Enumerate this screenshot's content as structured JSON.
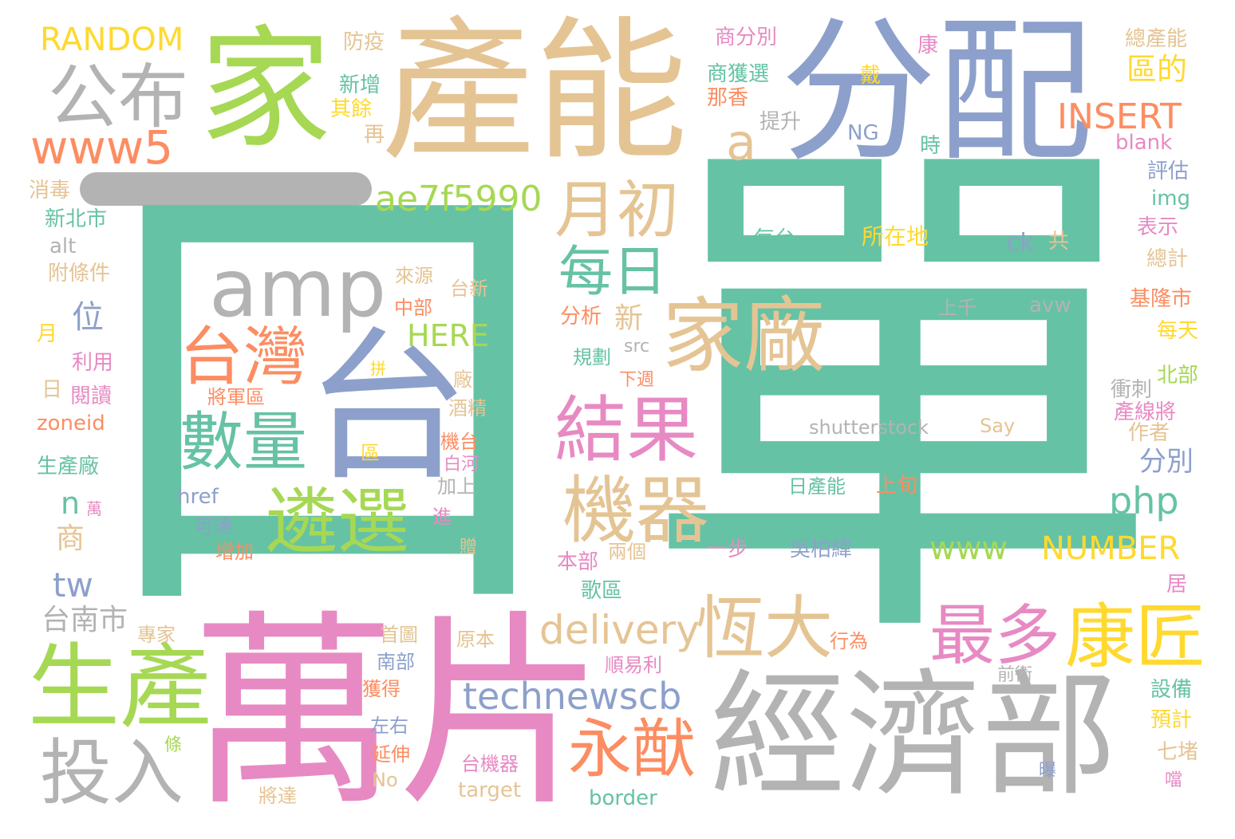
{
  "colors": {
    "teal": "#66c2a5",
    "orange": "#fc8d62",
    "blue": "#8da0cb",
    "pink": "#e78ac3",
    "green": "#a6d854",
    "yellow": "#ffd92f",
    "tan": "#e5c494",
    "gray": "#b3b3b3"
  },
  "words": [
    {
      "text": "單",
      "color": "teal"
    },
    {
      "text": "口",
      "color": "teal"
    },
    {
      "text": "萬片",
      "color": "pink"
    },
    {
      "text": "產能",
      "color": "tan"
    },
    {
      "text": "分配",
      "color": "blue"
    },
    {
      "text": "家",
      "color": "green"
    },
    {
      "text": "經濟部",
      "color": "gray"
    },
    {
      "text": "台",
      "color": "blue"
    },
    {
      "text": "公布",
      "color": "gray"
    },
    {
      "text": "www5",
      "color": "orange"
    },
    {
      "text": "RANDOM",
      "color": "yellow"
    },
    {
      "text": "amp",
      "color": "gray"
    },
    {
      "text": "台灣",
      "color": "orange"
    },
    {
      "text": "數量",
      "color": "teal"
    },
    {
      "text": "遴選",
      "color": "green"
    },
    {
      "text": "生產",
      "color": "green"
    },
    {
      "text": "投入",
      "color": "gray"
    },
    {
      "text": "月初",
      "color": "tan"
    },
    {
      "text": "每日",
      "color": "teal"
    },
    {
      "text": "家廠",
      "color": "tan"
    },
    {
      "text": "結果",
      "color": "pink"
    },
    {
      "text": "機器",
      "color": "tan"
    },
    {
      "text": "恆大",
      "color": "tan"
    },
    {
      "text": "永猷",
      "color": "orange"
    },
    {
      "text": "最多",
      "color": "pink"
    },
    {
      "text": "康匠",
      "color": "yellow"
    },
    {
      "text": "a",
      "color": "tan"
    },
    {
      "text": "ae7f5990",
      "color": "green"
    },
    {
      "text": "delivery",
      "color": "tan"
    },
    {
      "text": "technewscb",
      "color": "blue"
    },
    {
      "text": "INSERT",
      "color": "orange"
    },
    {
      "text": "區的",
      "color": "yellow"
    },
    {
      "text": "php",
      "color": "teal"
    },
    {
      "text": "www",
      "color": "green"
    },
    {
      "text": "NUMBER",
      "color": "yellow"
    },
    {
      "text": "分別",
      "color": "blue"
    },
    {
      "text": "HERE",
      "color": "green"
    },
    {
      "text": "位",
      "color": "blue"
    },
    {
      "text": "n",
      "color": "teal"
    },
    {
      "text": "tw",
      "color": "blue"
    },
    {
      "text": "台南市",
      "color": "gray"
    },
    {
      "text": "商",
      "color": "tan"
    },
    {
      "text": "新",
      "color": "tan"
    },
    {
      "text": "防疫",
      "color": "tan"
    },
    {
      "text": "新增",
      "color": "teal"
    },
    {
      "text": "其餘",
      "color": "yellow"
    },
    {
      "text": "再",
      "color": "tan"
    },
    {
      "text": "商分別",
      "color": "pink"
    },
    {
      "text": "商獲選",
      "color": "teal"
    },
    {
      "text": "那香",
      "color": "orange"
    },
    {
      "text": "提升",
      "color": "gray"
    },
    {
      "text": "康",
      "color": "pink"
    },
    {
      "text": "戴",
      "color": "yellow"
    },
    {
      "text": "NG",
      "color": "blue"
    },
    {
      "text": "時",
      "color": "teal"
    },
    {
      "text": "總產能",
      "color": "tan"
    },
    {
      "text": "blank",
      "color": "pink"
    },
    {
      "text": "評估",
      "color": "blue"
    },
    {
      "text": "img",
      "color": "teal"
    },
    {
      "text": "表示",
      "color": "pink"
    },
    {
      "text": "總計",
      "color": "tan"
    },
    {
      "text": "基隆市",
      "color": "orange"
    },
    {
      "text": "每天",
      "color": "yellow"
    },
    {
      "text": "北部",
      "color": "green"
    },
    {
      "text": "衝刺",
      "color": "gray"
    },
    {
      "text": "產線將",
      "color": "pink"
    },
    {
      "text": "作者",
      "color": "tan"
    },
    {
      "text": "居",
      "color": "pink"
    },
    {
      "text": "前衛",
      "color": "gray"
    },
    {
      "text": "設備",
      "color": "teal"
    },
    {
      "text": "預計",
      "color": "yellow"
    },
    {
      "text": "七堵",
      "color": "tan"
    },
    {
      "text": "曝",
      "color": "blue"
    },
    {
      "text": "噹",
      "color": "pink"
    },
    {
      "text": "每台",
      "color": "teal"
    },
    {
      "text": "所在地",
      "color": "yellow"
    },
    {
      "text": "ck",
      "color": "blue"
    },
    {
      "text": "共",
      "color": "tan"
    },
    {
      "text": "上千",
      "color": "gray"
    },
    {
      "text": "avw",
      "color": "gray"
    },
    {
      "text": "shutterstock",
      "color": "gray"
    },
    {
      "text": "Say",
      "color": "tan"
    },
    {
      "text": "日產能",
      "color": "teal"
    },
    {
      "text": "上旬",
      "color": "orange"
    },
    {
      "text": "消毒",
      "color": "tan"
    },
    {
      "text": "新北市",
      "color": "teal"
    },
    {
      "text": "alt",
      "color": "gray"
    },
    {
      "text": "附條件",
      "color": "tan"
    },
    {
      "text": "月",
      "color": "yellow"
    },
    {
      "text": "利用",
      "color": "pink"
    },
    {
      "text": "日",
      "color": "tan"
    },
    {
      "text": "閱讀",
      "color": "pink"
    },
    {
      "text": "zoneid",
      "color": "orange"
    },
    {
      "text": "生產廠",
      "color": "teal"
    },
    {
      "text": "萬",
      "color": "pink"
    },
    {
      "text": "來源",
      "color": "tan"
    },
    {
      "text": "台新",
      "color": "tan"
    },
    {
      "text": "中部",
      "color": "orange"
    },
    {
      "text": "分析",
      "color": "orange"
    },
    {
      "text": "規劃",
      "color": "teal"
    },
    {
      "text": "src",
      "color": "gray"
    },
    {
      "text": "下週",
      "color": "orange"
    },
    {
      "text": "拼",
      "color": "yellow"
    },
    {
      "text": "將軍區",
      "color": "orange"
    },
    {
      "text": "廠",
      "color": "tan"
    },
    {
      "text": "酒精",
      "color": "tan"
    },
    {
      "text": "區",
      "color": "yellow"
    },
    {
      "text": "機台",
      "color": "orange"
    },
    {
      "text": "白河",
      "color": "pink"
    },
    {
      "text": "加上",
      "color": "gray"
    },
    {
      "text": "href",
      "color": "blue"
    },
    {
      "text": "可達",
      "color": "blue"
    },
    {
      "text": "增加",
      "color": "orange"
    },
    {
      "text": "進",
      "color": "pink"
    },
    {
      "text": "贈",
      "color": "tan"
    },
    {
      "text": "本部",
      "color": "pink"
    },
    {
      "text": "兩個",
      "color": "tan"
    },
    {
      "text": "一步",
      "color": "pink"
    },
    {
      "text": "吳柏緯",
      "color": "blue"
    },
    {
      "text": "歌區",
      "color": "teal"
    },
    {
      "text": "專家",
      "color": "tan"
    },
    {
      "text": "首圖",
      "color": "tan"
    },
    {
      "text": "原本",
      "color": "tan"
    },
    {
      "text": "南部",
      "color": "blue"
    },
    {
      "text": "順易利",
      "color": "pink"
    },
    {
      "text": "行為",
      "color": "orange"
    },
    {
      "text": "獲得",
      "color": "orange"
    },
    {
      "text": "左右",
      "color": "blue"
    },
    {
      "text": "條",
      "color": "green"
    },
    {
      "text": "延伸",
      "color": "orange"
    },
    {
      "text": "No",
      "color": "tan"
    },
    {
      "text": "將達",
      "color": "tan"
    },
    {
      "text": "台機器",
      "color": "pink"
    },
    {
      "text": "target",
      "color": "tan"
    },
    {
      "text": "border",
      "color": "teal"
    }
  ]
}
